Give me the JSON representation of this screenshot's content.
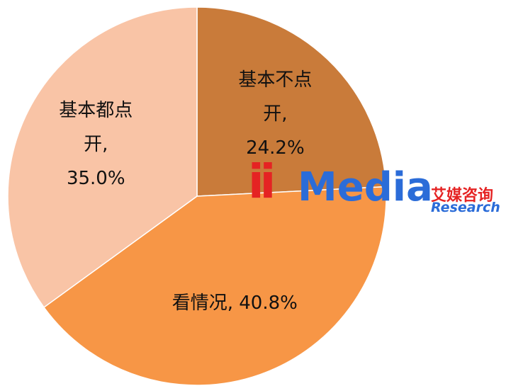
{
  "chart_data": {
    "type": "pie",
    "categories": [
      "基本不点开",
      "看情况",
      "基本都点开"
    ],
    "values": [
      24.2,
      40.8,
      35.0
    ],
    "value_labels": [
      "基本不点开, 24.2%",
      "看情况, 40.8%",
      "基本都点开, 35.0%"
    ],
    "colors": [
      "#c97b3a",
      "#f79646",
      "#f9c4a6"
    ],
    "start_angle": 0,
    "direction": "clockwise"
  },
  "watermark": {
    "brand_prefix": "ii",
    "brand": "Media",
    "cn": "艾媒咨询",
    "en": "Research"
  }
}
